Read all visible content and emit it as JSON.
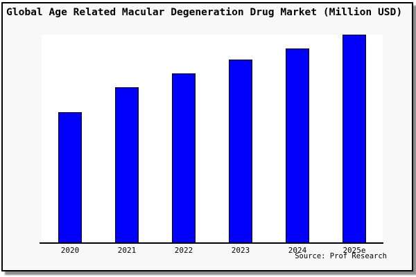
{
  "chart_data": {
    "type": "bar",
    "title": "Global Age Related Macular Degeneration Drug Market (Million USD)",
    "categories": [
      "2020",
      "2021",
      "2022",
      "2023",
      "2024",
      "2025e"
    ],
    "values_relative_pct": [
      63,
      75,
      81.5,
      88,
      93.5,
      100
    ],
    "values_note": "No y-axis, gridlines or data labels shown; values are bar heights relative to tallest bar (2025e = 100)",
    "value_axis_visible": false,
    "grid": false,
    "legend_position": "none",
    "xlabel": "",
    "ylabel": "",
    "source": "Source: Prof Research",
    "bar_color": "#0101fb",
    "bar_border_color": "#000000",
    "plot_background": "#ffffff",
    "frame_background": "#f8f8f8",
    "frame_border_color": "#000000"
  }
}
